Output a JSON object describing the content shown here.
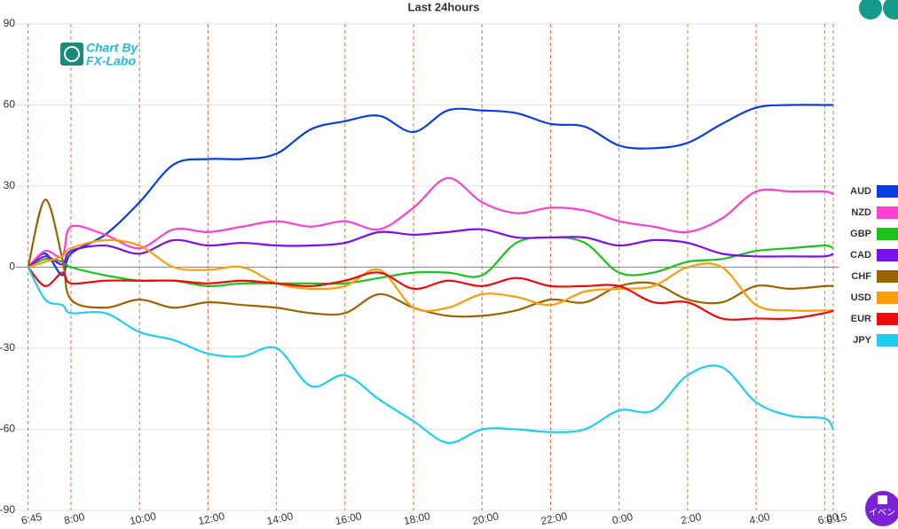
{
  "chart_data": {
    "type": "line",
    "title": "Last 24hours",
    "logo": [
      "Chart By",
      "FX-Labo"
    ],
    "event_button": "イベン",
    "x": [
      6.75,
      7.25,
      7.75,
      8,
      9,
      10,
      11,
      12,
      13,
      14,
      15,
      16,
      17,
      18,
      19,
      20,
      21,
      22,
      23,
      24,
      25,
      26,
      27,
      28,
      29,
      30,
      30.25
    ],
    "xlim": [
      6.75,
      30.25
    ],
    "xticks": [
      {
        "value": 6.75,
        "label": "6:45"
      },
      {
        "value": 8,
        "label": "8:00"
      },
      {
        "value": 10,
        "label": "10:00"
      },
      {
        "value": 12,
        "label": "12:00"
      },
      {
        "value": 14,
        "label": "14:00"
      },
      {
        "value": 16,
        "label": "16:00"
      },
      {
        "value": 18,
        "label": "18:00"
      },
      {
        "value": 20,
        "label": "20:00"
      },
      {
        "value": 22,
        "label": "22:00"
      },
      {
        "value": 24,
        "label": "0:00"
      },
      {
        "value": 26,
        "label": "2:00"
      },
      {
        "value": 28,
        "label": "4:00"
      },
      {
        "value": 30,
        "label": "6:00"
      },
      {
        "value": 30.25,
        "label": "6:15"
      }
    ],
    "ylim": [
      -90,
      90
    ],
    "yticks": [
      90,
      60,
      30,
      0,
      -30,
      -60,
      -90
    ],
    "grid": true,
    "legend": "right",
    "series": [
      {
        "name": "AUD",
        "color": "#0a3ce6",
        "values": [
          0,
          5,
          -3,
          5,
          12,
          24,
          38,
          40,
          40,
          42,
          51,
          54,
          56,
          50,
          58,
          58,
          57,
          53,
          52,
          45,
          44,
          46,
          53,
          59,
          60,
          60,
          60
        ]
      },
      {
        "name": "NZD",
        "color": "#ff3fcf",
        "values": [
          0,
          6,
          4,
          15,
          12,
          7,
          14,
          13,
          15,
          17,
          15,
          17,
          14,
          22,
          33,
          24,
          20,
          22,
          21,
          17,
          15,
          13,
          18,
          28,
          28,
          28,
          27
        ]
      },
      {
        "name": "GBP",
        "color": "#19c319",
        "values": [
          0,
          3,
          2,
          0,
          -3,
          -5,
          -5,
          -7,
          -6,
          -6,
          -6,
          -6,
          -4,
          -2,
          -2,
          -3,
          9,
          11,
          9,
          -2,
          -2,
          2,
          3,
          6,
          7,
          8,
          7
        ]
      },
      {
        "name": "CAD",
        "color": "#7a10ee",
        "values": [
          0,
          4,
          1,
          6,
          8,
          5,
          10,
          8,
          9,
          8,
          8,
          9,
          13,
          12,
          13,
          14,
          11,
          11,
          11,
          8,
          10,
          9,
          5,
          4,
          4,
          4,
          5
        ]
      },
      {
        "name": "CHF",
        "color": "#9c6400",
        "values": [
          0,
          25,
          3,
          -12,
          -15,
          -12,
          -15,
          -13,
          -14,
          -15,
          -17,
          -17,
          -10,
          -15,
          -18,
          -18,
          -16,
          -12,
          -13,
          -7,
          -6,
          -12,
          -13,
          -7,
          -8,
          -7,
          -7
        ]
      },
      {
        "name": "USD",
        "color": "#ff9c0a",
        "values": [
          0,
          2,
          4,
          7,
          10,
          8,
          0,
          -1,
          0,
          -6,
          -8,
          -7,
          -1,
          -15,
          -15,
          -10,
          -11,
          -14,
          -9,
          -8,
          -7,
          0,
          0,
          -14,
          -16,
          -16,
          -16
        ]
      },
      {
        "name": "EUR",
        "color": "#ee0a0a",
        "values": [
          0,
          -7,
          -2,
          -6,
          -5,
          -5,
          -5,
          -6,
          -5,
          -6,
          -7,
          -5,
          -2,
          -8,
          -5,
          -7,
          -4,
          -7,
          -7,
          -7,
          -13,
          -13,
          -19,
          -19,
          -19,
          -17,
          -16
        ]
      },
      {
        "name": "JPY",
        "color": "#1ecdf0",
        "values": [
          0,
          -12,
          -14,
          -17,
          -17,
          -24,
          -27,
          -32,
          -33,
          -30,
          -44,
          -40,
          -49,
          -57,
          -65,
          -60,
          -60,
          -61,
          -60,
          -53,
          -53,
          -40,
          -37,
          -50,
          -55,
          -56,
          -60
        ]
      }
    ]
  }
}
